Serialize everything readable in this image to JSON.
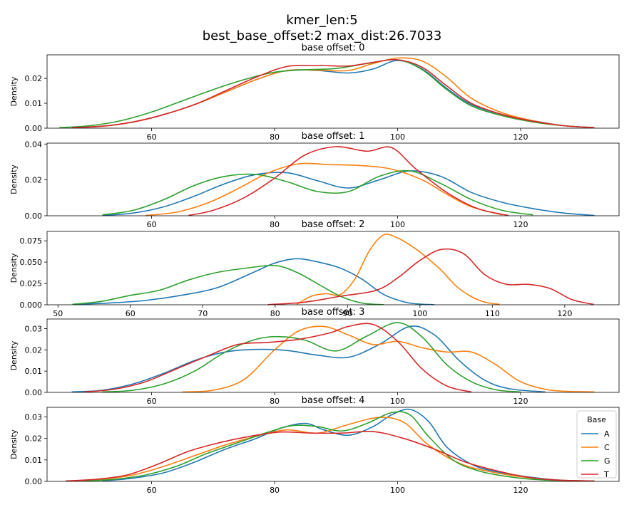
{
  "figure": {
    "title_line1": "kmer_len:5",
    "title_line2": "best_base_offset:2 max_dist:26.7033"
  },
  "colors": {
    "A": "#1f77b4",
    "C": "#ff7f0e",
    "G": "#2ca02c",
    "T": "#d62728"
  },
  "chart_data": [
    {
      "type": "line",
      "title": "base offset: 0",
      "ylabel": "Density",
      "xlim": [
        43,
        136
      ],
      "ylim": [
        0,
        0.0295
      ],
      "xticks": [
        60,
        80,
        100,
        120
      ],
      "yticks": [
        0.0,
        0.01,
        0.02
      ],
      "ytick_labels": [
        "0.00",
        "0.01",
        "0.02"
      ],
      "grid": false,
      "series": [
        {
          "name": "A",
          "x": [
            47,
            52,
            57,
            62,
            67,
            72,
            77,
            82,
            87,
            92,
            96,
            100,
            104,
            108,
            112,
            117,
            122,
            127,
            132
          ],
          "y": [
            0.0002,
            0.0008,
            0.0025,
            0.0055,
            0.0095,
            0.0145,
            0.0195,
            0.0232,
            0.0232,
            0.0222,
            0.0238,
            0.0272,
            0.0238,
            0.016,
            0.0095,
            0.0055,
            0.003,
            0.001,
            0.0002
          ]
        },
        {
          "name": "C",
          "x": [
            47,
            52,
            57,
            62,
            67,
            72,
            77,
            82,
            87,
            92,
            96,
            100,
            104,
            108,
            112,
            117,
            122,
            127,
            132
          ],
          "y": [
            0.0002,
            0.0008,
            0.0025,
            0.0055,
            0.0095,
            0.0145,
            0.0195,
            0.0232,
            0.0233,
            0.0232,
            0.026,
            0.0282,
            0.027,
            0.0205,
            0.012,
            0.0062,
            0.003,
            0.001,
            0.0002
          ]
        },
        {
          "name": "G",
          "x": [
            45,
            50,
            55,
            60,
            65,
            70,
            75,
            80,
            85,
            90,
            95,
            100,
            104,
            108,
            112,
            117,
            122,
            127,
            132
          ],
          "y": [
            0.0002,
            0.001,
            0.003,
            0.0065,
            0.011,
            0.0155,
            0.0195,
            0.0225,
            0.0235,
            0.024,
            0.026,
            0.0275,
            0.0235,
            0.0155,
            0.009,
            0.005,
            0.0025,
            0.001,
            0.0002
          ]
        },
        {
          "name": "T",
          "x": [
            47,
            52,
            57,
            62,
            67,
            72,
            77,
            82,
            87,
            92,
            96,
            100,
            104,
            108,
            112,
            117,
            122,
            127,
            132
          ],
          "y": [
            0.0002,
            0.0008,
            0.0025,
            0.0055,
            0.0095,
            0.015,
            0.0205,
            0.0248,
            0.0252,
            0.025,
            0.0265,
            0.0275,
            0.0245,
            0.017,
            0.01,
            0.0055,
            0.0028,
            0.001,
            0.0002
          ]
        }
      ]
    },
    {
      "type": "line",
      "title": "base offset: 1",
      "ylabel": "Density",
      "xlim": [
        43,
        136
      ],
      "ylim": [
        0,
        0.0405
      ],
      "xticks": [
        60,
        80,
        100,
        120
      ],
      "yticks": [
        0.0,
        0.02,
        0.04
      ],
      "ytick_labels": [
        "0.00",
        "0.02",
        "0.04"
      ],
      "grid": false,
      "series": [
        {
          "name": "A",
          "x": [
            52,
            57,
            62,
            67,
            72,
            77,
            82,
            87,
            92,
            97,
            102,
            107,
            112,
            117,
            122,
            127,
            132
          ],
          "y": [
            0.0002,
            0.0015,
            0.005,
            0.011,
            0.018,
            0.023,
            0.024,
            0.0195,
            0.0155,
            0.02,
            0.025,
            0.022,
            0.013,
            0.0075,
            0.004,
            0.0015,
            0.0002
          ]
        },
        {
          "name": "C",
          "x": [
            59,
            64,
            69,
            74,
            79,
            84,
            89,
            94,
            99,
            104,
            108,
            112,
            117
          ],
          "y": [
            0.0002,
            0.002,
            0.007,
            0.015,
            0.024,
            0.029,
            0.0285,
            0.028,
            0.026,
            0.02,
            0.012,
            0.005,
            0.0005
          ]
        },
        {
          "name": "G",
          "x": [
            52,
            57,
            62,
            67,
            72,
            77,
            82,
            87,
            92,
            97,
            102,
            107,
            112,
            117,
            122
          ],
          "y": [
            0.0005,
            0.003,
            0.009,
            0.017,
            0.022,
            0.023,
            0.019,
            0.0135,
            0.0135,
            0.022,
            0.025,
            0.018,
            0.009,
            0.003,
            0.0005
          ]
        },
        {
          "name": "T",
          "x": [
            66,
            70,
            75,
            80,
            85,
            90,
            95,
            99,
            103,
            108,
            113,
            118
          ],
          "y": [
            0.0002,
            0.003,
            0.01,
            0.021,
            0.034,
            0.0385,
            0.036,
            0.038,
            0.026,
            0.013,
            0.004,
            0.0002
          ]
        }
      ]
    },
    {
      "type": "line",
      "title": "base offset: 2",
      "ylabel": "Density",
      "xlim": [
        48.5,
        127.5
      ],
      "ylim": [
        0,
        0.086
      ],
      "xticks": [
        50,
        60,
        70,
        80,
        90,
        100,
        110,
        120
      ],
      "yticks": [
        0.0,
        0.025,
        0.05,
        0.075
      ],
      "ytick_labels": [
        "0.000",
        "0.025",
        "0.050",
        "0.075"
      ],
      "grid": false,
      "series": [
        {
          "name": "A",
          "x": [
            52,
            57,
            62,
            67,
            72,
            77,
            80,
            83,
            86,
            89,
            92,
            95,
            98,
            100,
            102
          ],
          "y": [
            0.0005,
            0.002,
            0.005,
            0.011,
            0.02,
            0.038,
            0.049,
            0.054,
            0.05,
            0.043,
            0.03,
            0.012,
            0.003,
            0.0008,
            0.0002
          ]
        },
        {
          "name": "C",
          "x": [
            83,
            85,
            87,
            89,
            91,
            93,
            95,
            97,
            99,
            101,
            103,
            105,
            107,
            109,
            111
          ],
          "y": [
            0.0005,
            0.01,
            0.013,
            0.012,
            0.03,
            0.063,
            0.082,
            0.078,
            0.068,
            0.055,
            0.04,
            0.022,
            0.01,
            0.003,
            0.0005
          ]
        },
        {
          "name": "G",
          "x": [
            52,
            56,
            60,
            64,
            68,
            72,
            76,
            80,
            83,
            86,
            89,
            92,
            95
          ],
          "y": [
            0.0005,
            0.004,
            0.011,
            0.017,
            0.029,
            0.038,
            0.043,
            0.046,
            0.038,
            0.024,
            0.01,
            0.002,
            0.0002
          ]
        },
        {
          "name": "T",
          "x": [
            79,
            84,
            89,
            94,
            97,
            100,
            103,
            106,
            109,
            112,
            115,
            118,
            121,
            124
          ],
          "y": [
            0.0002,
            0.003,
            0.01,
            0.017,
            0.032,
            0.052,
            0.065,
            0.06,
            0.035,
            0.024,
            0.024,
            0.019,
            0.006,
            0.0005
          ]
        }
      ]
    },
    {
      "type": "line",
      "title": "base offset: 3",
      "ylabel": "Density",
      "xlim": [
        43,
        136
      ],
      "ylim": [
        0,
        0.0345
      ],
      "xticks": [
        60,
        80,
        100,
        120
      ],
      "yticks": [
        0.0,
        0.01,
        0.02,
        0.03
      ],
      "ytick_labels": [
        "0.00",
        "0.01",
        "0.02",
        "0.03"
      ],
      "grid": false,
      "series": [
        {
          "name": "A",
          "x": [
            47,
            52,
            57,
            62,
            67,
            72,
            77,
            82,
            87,
            92,
            97,
            102,
            106,
            110,
            114,
            118,
            124
          ],
          "y": [
            0.0002,
            0.001,
            0.004,
            0.009,
            0.015,
            0.019,
            0.0202,
            0.0197,
            0.0175,
            0.0165,
            0.0225,
            0.031,
            0.027,
            0.015,
            0.006,
            0.0018,
            0.0002
          ]
        },
        {
          "name": "C",
          "x": [
            65,
            70,
            75,
            80,
            84,
            88,
            92,
            96,
            100,
            104,
            108,
            112,
            116,
            120,
            125,
            132
          ],
          "y": [
            0.0002,
            0.001,
            0.006,
            0.02,
            0.029,
            0.031,
            0.027,
            0.0225,
            0.024,
            0.021,
            0.019,
            0.019,
            0.013,
            0.005,
            0.001,
            0.0002
          ]
        },
        {
          "name": "G",
          "x": [
            52,
            57,
            62,
            67,
            72,
            77,
            81,
            85,
            90,
            95,
            100,
            104,
            108,
            112,
            116,
            120
          ],
          "y": [
            0.0002,
            0.001,
            0.004,
            0.01,
            0.019,
            0.025,
            0.0262,
            0.0245,
            0.0195,
            0.0265,
            0.0328,
            0.026,
            0.013,
            0.005,
            0.0012,
            0.0002
          ]
        },
        {
          "name": "T",
          "x": [
            49,
            54,
            59,
            64,
            69,
            74,
            79,
            84,
            89,
            92,
            96,
            100,
            104,
            108,
            112
          ],
          "y": [
            0.0002,
            0.0015,
            0.005,
            0.011,
            0.017,
            0.0225,
            0.0235,
            0.025,
            0.028,
            0.031,
            0.032,
            0.024,
            0.011,
            0.003,
            0.0002
          ]
        }
      ]
    },
    {
      "type": "line",
      "title": "base offset: 4",
      "ylabel": "Density",
      "xlim": [
        43,
        136
      ],
      "ylim": [
        0,
        0.0345
      ],
      "xticks": [
        60,
        80,
        100,
        120
      ],
      "yticks": [
        0.0,
        0.01,
        0.02,
        0.03
      ],
      "ytick_labels": [
        "0.00",
        "0.01",
        "0.02",
        "0.03"
      ],
      "grid": false,
      "legend": {
        "title": "Base",
        "position": "top-right",
        "entries": [
          "A",
          "C",
          "G",
          "T"
        ]
      },
      "series": [
        {
          "name": "A",
          "x": [
            52,
            57,
            62,
            67,
            72,
            77,
            81,
            85,
            88,
            92,
            96,
            99,
            102,
            105,
            108,
            112,
            116,
            122,
            127,
            132
          ],
          "y": [
            0.0002,
            0.0015,
            0.004,
            0.009,
            0.015,
            0.02,
            0.0248,
            0.027,
            0.024,
            0.0215,
            0.0255,
            0.031,
            0.0335,
            0.028,
            0.016,
            0.008,
            0.0045,
            0.0018,
            0.0005,
            0.0002
          ]
        },
        {
          "name": "C",
          "x": [
            47,
            52,
            57,
            62,
            67,
            72,
            77,
            82,
            87,
            92,
            97,
            101,
            105,
            110,
            115,
            120,
            126,
            132
          ],
          "y": [
            0.0002,
            0.001,
            0.003,
            0.007,
            0.012,
            0.017,
            0.021,
            0.024,
            0.0225,
            0.0265,
            0.0298,
            0.0275,
            0.017,
            0.0085,
            0.0045,
            0.0022,
            0.0006,
            0.0002
          ]
        },
        {
          "name": "G",
          "x": [
            49,
            54,
            59,
            64,
            69,
            74,
            79,
            83,
            87,
            91,
            95,
            99,
            102,
            105,
            109,
            113,
            118,
            124,
            132
          ],
          "y": [
            0.0002,
            0.001,
            0.003,
            0.007,
            0.013,
            0.018,
            0.023,
            0.026,
            0.0255,
            0.0235,
            0.027,
            0.032,
            0.031,
            0.021,
            0.01,
            0.005,
            0.0022,
            0.0006,
            0.0002
          ]
        },
        {
          "name": "T",
          "x": [
            46,
            51,
            56,
            61,
            66,
            71,
            76,
            81,
            86,
            91,
            96,
            101,
            106,
            111,
            116,
            121,
            126,
            132
          ],
          "y": [
            0.0002,
            0.001,
            0.003,
            0.008,
            0.014,
            0.018,
            0.021,
            0.023,
            0.0225,
            0.0225,
            0.0232,
            0.02,
            0.015,
            0.009,
            0.005,
            0.002,
            0.0006,
            0.0002
          ]
        }
      ]
    }
  ]
}
